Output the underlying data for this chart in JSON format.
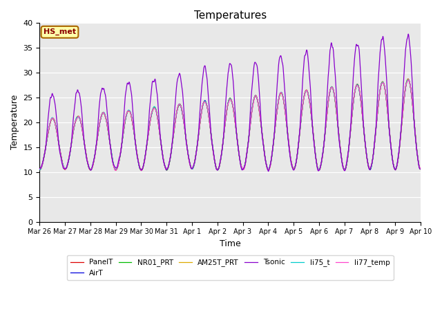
{
  "title": "Temperatures",
  "xlabel": "Time",
  "ylabel": "Temperature",
  "ylim": [
    0,
    40
  ],
  "annotation": "HS_met",
  "plot_bg_color": "#e8e8e8",
  "fig_bg_color": "#ffffff",
  "series_colors": {
    "PanelT": "#dd0000",
    "AirT": "#0000dd",
    "NR01_PRT": "#00bb00",
    "AM25T_PRT": "#ddaa00",
    "Tsonic": "#8800cc",
    "li75_t": "#00cccc",
    "li77_temp": "#ff44cc"
  },
  "xtick_labels": [
    "Mar 26",
    "Mar 27",
    "Mar 28",
    "Mar 29",
    "Mar 30",
    "Mar 31",
    "Apr 1",
    "Apr 2",
    "Apr 3",
    "Apr 4",
    "Apr 5",
    "Apr 6",
    "Apr 7",
    "Apr 8",
    "Apr 9",
    "Apr 10"
  ],
  "n_days": 15,
  "pts_per_day": 96
}
